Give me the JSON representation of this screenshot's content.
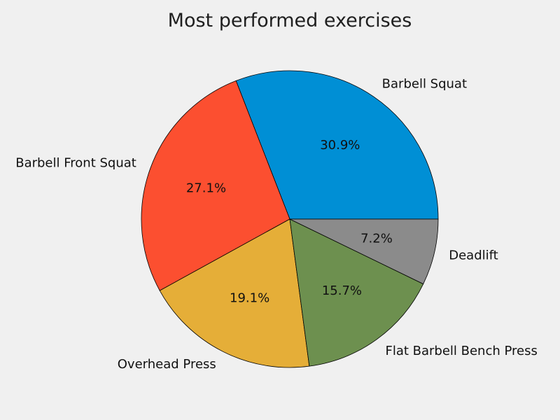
{
  "chart_data": {
    "type": "pie",
    "title": "Most performed exercises",
    "categories": [
      "Barbell Squat",
      "Barbell Front Squat",
      "Overhead Press",
      "Flat Barbell Bench Press",
      "Deadlift"
    ],
    "values": [
      30.9,
      27.1,
      19.1,
      15.7,
      7.2
    ],
    "percent_labels": [
      "30.9%",
      "27.1%",
      "19.1%",
      "15.7%",
      "7.2%"
    ],
    "colors": [
      "#008fd5",
      "#fc4f30",
      "#e5ae38",
      "#6d904f",
      "#8b8b8b"
    ],
    "start_angle_deg": 0,
    "direction": "counterclockwise",
    "legend": "none"
  }
}
